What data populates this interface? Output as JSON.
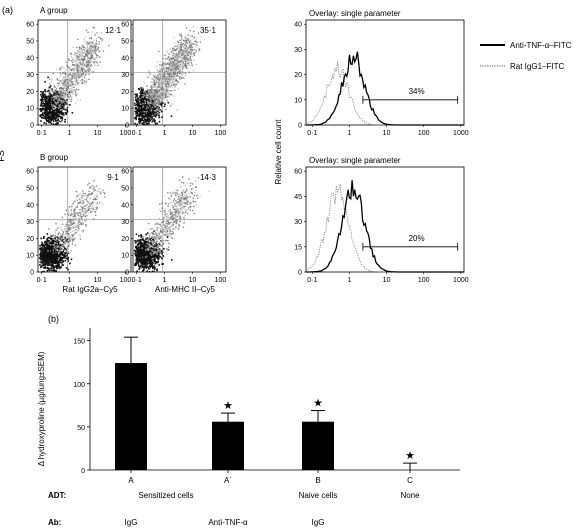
{
  "panel_a": {
    "label": "(a)",
    "fs_label": "FS",
    "dot_plots": {
      "x_tick_labels": [
        "0·1",
        "1",
        "10",
        "100"
      ],
      "y_tick_labels": [
        "0",
        "10",
        "20",
        "30",
        "40",
        "50",
        "60"
      ],
      "groups": [
        {
          "name": "A group",
          "plots": [
            {
              "quadrant_value": "12·1"
            },
            {
              "quadrant_value": "35·1"
            }
          ]
        },
        {
          "name": "B group",
          "plots": [
            {
              "quadrant_value": "9·1"
            },
            {
              "quadrant_value": "14·3"
            }
          ]
        }
      ],
      "x_labels": [
        "Rat IgG2a–Cy5",
        "Anti-MHC II–Cy5"
      ]
    },
    "histograms": {
      "ylabel": "Relative cell count",
      "x_tick_labels": [
        "0·1",
        "1",
        "10",
        "100",
        "1000"
      ],
      "legend": [
        {
          "name": "Anti-TNF-α–FITC",
          "style": "solid"
        },
        {
          "name": "Rat IgG1–FITC",
          "style": "dotted"
        }
      ],
      "plots": [
        {
          "title": "Overlay: single parameter",
          "y_tick_labels": [
            "0",
            "10",
            "20",
            "30",
            "40"
          ],
          "ylim": [
            0,
            40
          ],
          "gate_percent": "34%",
          "peak_solid": 27,
          "peak_dotted": 22
        },
        {
          "title": "Overlay: single parameter",
          "y_tick_labels": [
            "0",
            "15",
            "30",
            "45",
            "60"
          ],
          "ylim": [
            0,
            60
          ],
          "gate_percent": "20%",
          "peak_solid": 50,
          "peak_dotted": 48
        }
      ]
    }
  },
  "panel_b": {
    "label": "(b)",
    "row_labels": {
      "adt": "ADT:",
      "ab": "Ab:"
    },
    "adt_labels": [
      "Sensitized cells",
      "Naive cells",
      "None"
    ],
    "ab_labels": [
      "IgG",
      "Anti-TNF-α",
      "IgG",
      ""
    ],
    "significance_marker": "★"
  },
  "chart_data": {
    "type": "bar",
    "categories": [
      "A",
      "A´",
      "B",
      "C"
    ],
    "values": [
      124,
      56,
      56,
      0
    ],
    "errors": [
      30,
      10,
      13,
      8
    ],
    "significant": [
      false,
      true,
      true,
      true
    ],
    "xlabel": "",
    "ylabel": "Δ hydroxyproline (µg/lung±SEM)",
    "ylim": [
      0,
      160
    ],
    "y_ticks": [
      0,
      50,
      100,
      150
    ],
    "colors": {
      "bar": "#000000",
      "axis": "#000000",
      "dot_dark": "#111111",
      "dot_mid": "#7a7a7a",
      "dot_light": "#c4c4c4"
    }
  }
}
